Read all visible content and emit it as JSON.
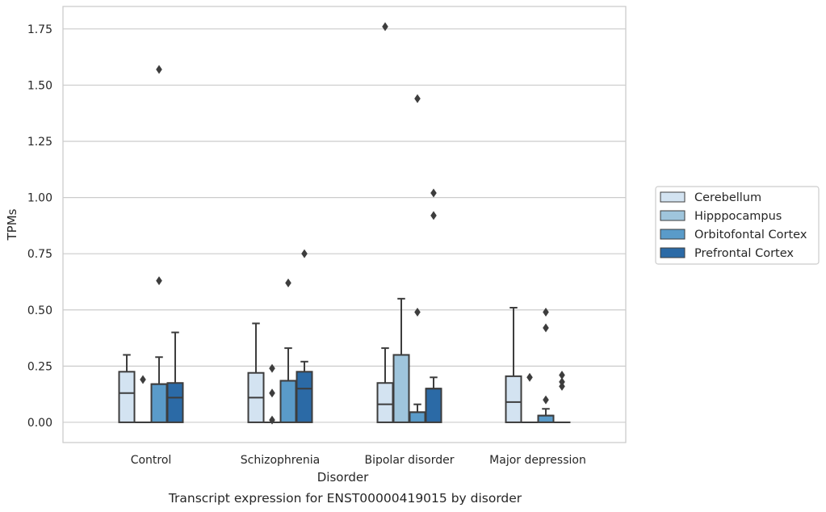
{
  "chart_data": {
    "type": "box",
    "caption": "Transcript expression for ENST00000419015 by disorder",
    "xlabel": "Disorder",
    "ylabel": "TPMs",
    "ylim": [
      -0.09,
      1.85
    ],
    "yticks": [
      "0.00",
      "0.25",
      "0.50",
      "0.75",
      "1.00",
      "1.25",
      "1.50",
      "1.75"
    ],
    "grid": "horizontal",
    "legend_position": "right",
    "categories": [
      "Control",
      "Schizophrenia",
      "Bipolar disorder",
      "Major depression"
    ],
    "series": [
      {
        "name": "Cerebellum",
        "color": "#d3e3f1",
        "boxes": [
          {
            "q1": 0,
            "median": 0.13,
            "q3": 0.225,
            "whisker_low": 0,
            "whisker_high": 0.3,
            "outliers": []
          },
          {
            "q1": 0,
            "median": 0.11,
            "q3": 0.22,
            "whisker_low": 0,
            "whisker_high": 0.44,
            "outliers": []
          },
          {
            "q1": 0,
            "median": 0.08,
            "q3": 0.175,
            "whisker_low": 0,
            "whisker_high": 0.33,
            "outliers": [
              1.76
            ]
          },
          {
            "q1": 0,
            "median": 0.09,
            "q3": 0.205,
            "whisker_low": 0,
            "whisker_high": 0.51,
            "outliers": []
          }
        ]
      },
      {
        "name": "Hipppocampus",
        "color": "#9fc5dc",
        "boxes": [
          {
            "q1": 0,
            "median": 0,
            "q3": 0,
            "whisker_low": 0,
            "whisker_high": 0,
            "outliers": [
              0.19
            ]
          },
          {
            "q1": 0,
            "median": 0,
            "q3": 0,
            "whisker_low": 0,
            "whisker_high": 0,
            "outliers": [
              0.01,
              0.13,
              0.24
            ]
          },
          {
            "q1": 0,
            "median": 0.3,
            "q3": 0.3,
            "whisker_low": 0,
            "whisker_high": 0.55,
            "outliers": []
          },
          {
            "q1": 0,
            "median": 0,
            "q3": 0,
            "whisker_low": 0,
            "whisker_high": 0,
            "outliers": [
              0.2
            ]
          }
        ]
      },
      {
        "name": "Orbitofontal Cortex",
        "color": "#5a9bc9",
        "boxes": [
          {
            "q1": 0,
            "median": 0.17,
            "q3": 0.17,
            "whisker_low": 0,
            "whisker_high": 0.29,
            "outliers": [
              0.63,
              1.57
            ]
          },
          {
            "q1": 0,
            "median": 0.185,
            "q3": 0.185,
            "whisker_low": 0,
            "whisker_high": 0.33,
            "outliers": [
              0.62
            ]
          },
          {
            "q1": 0,
            "median": 0.045,
            "q3": 0.045,
            "whisker_low": 0,
            "whisker_high": 0.08,
            "outliers": [
              0.49,
              1.44
            ]
          },
          {
            "q1": 0,
            "median": 0.03,
            "q3": 0.03,
            "whisker_low": 0,
            "whisker_high": 0.06,
            "outliers": [
              0.1,
              0.42,
              0.49
            ]
          }
        ]
      },
      {
        "name": "Prefrontal Cortex",
        "color": "#2b6aa6",
        "boxes": [
          {
            "q1": 0,
            "median": 0.11,
            "q3": 0.175,
            "whisker_low": 0,
            "whisker_high": 0.4,
            "outliers": []
          },
          {
            "q1": 0,
            "median": 0.15,
            "q3": 0.225,
            "whisker_low": 0,
            "whisker_high": 0.27,
            "outliers": [
              0.75
            ]
          },
          {
            "q1": 0,
            "median": 0.15,
            "q3": 0.15,
            "whisker_low": 0,
            "whisker_high": 0.2,
            "outliers": [
              0.92,
              1.02
            ]
          },
          {
            "q1": 0,
            "median": 0,
            "q3": 0,
            "whisker_low": 0,
            "whisker_high": 0,
            "outliers": [
              0.16,
              0.18,
              0.21
            ]
          }
        ]
      }
    ]
  }
}
